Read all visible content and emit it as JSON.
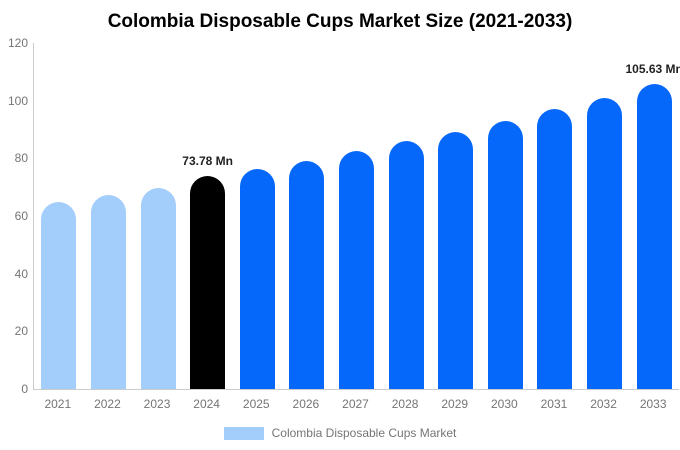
{
  "chart_data": {
    "type": "bar",
    "title": "Colombia Disposable Cups Market Size (2021-2033)",
    "categories": [
      "2021",
      "2022",
      "2023",
      "2024",
      "2025",
      "2026",
      "2027",
      "2028",
      "2029",
      "2030",
      "2031",
      "2032",
      "2033"
    ],
    "values": [
      64.9,
      67.4,
      69.8,
      73.78,
      76.3,
      79.2,
      82.5,
      85.9,
      89.0,
      93.0,
      97.0,
      100.9,
      105.63
    ],
    "series_roles": [
      "historical",
      "historical",
      "historical",
      "current",
      "forecast",
      "forecast",
      "forecast",
      "forecast",
      "forecast",
      "forecast",
      "forecast",
      "forecast",
      "forecast"
    ],
    "annotations": [
      {
        "category": "2024",
        "text": "73.78 Mn"
      },
      {
        "category": "2033",
        "text": "105.63 Mn"
      }
    ],
    "ylim": [
      0,
      120
    ],
    "yticks": [
      0,
      20,
      40,
      60,
      80,
      100,
      120
    ],
    "grid": false,
    "legend_position": "bottom",
    "legend": [
      {
        "label": "Colombia Disposable Cups Market",
        "color": "#A3CDFA"
      }
    ],
    "colors": {
      "historical": "#A3CDFA",
      "current": "#000000",
      "forecast": "#0568FA",
      "axis_line": "#cccccc",
      "tick_text": "#757575",
      "annotation_text": "#222222",
      "title_text": "#000000"
    }
  }
}
